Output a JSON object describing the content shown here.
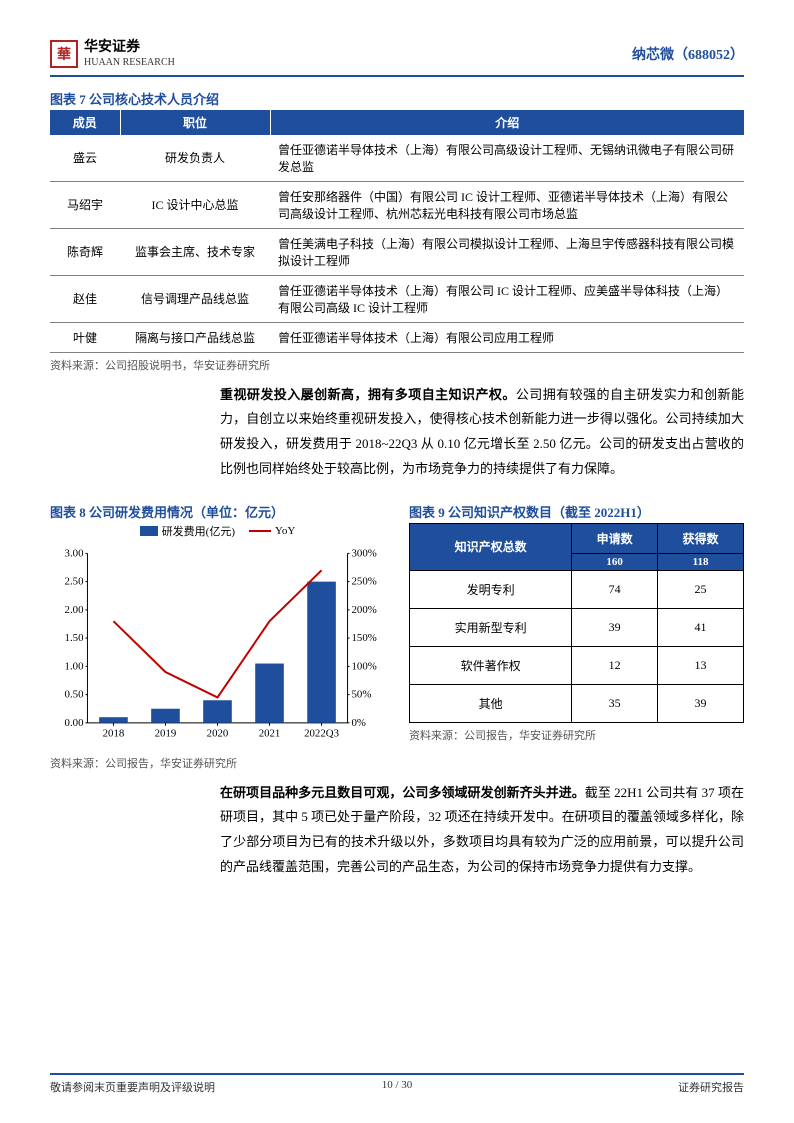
{
  "header": {
    "brand_cn": "华安证券",
    "brand_en": "HUAAN RESEARCH",
    "company": "纳芯微（688052）"
  },
  "table7": {
    "title": "图表 7 公司核心技术人员介绍",
    "headers": [
      "成员",
      "职位",
      "介绍"
    ],
    "rows": [
      {
        "name": "盛云",
        "role": "研发负责人",
        "desc": "曾任亚德诺半导体技术（上海）有限公司高级设计工程师、无锡纳讯微电子有限公司研发总监"
      },
      {
        "name": "马绍宇",
        "role": "IC 设计中心总监",
        "desc": "曾任安那络器件（中国）有限公司 IC 设计工程师、亚德诺半导体技术（上海）有限公司高级设计工程师、杭州芯耘光电科技有限公司市场总监"
      },
      {
        "name": "陈奇辉",
        "role": "监事会主席、技术专家",
        "desc": "曾任美满电子科技（上海）有限公司模拟设计工程师、上海旦宇传感器科技有限公司模拟设计工程师"
      },
      {
        "name": "赵佳",
        "role": "信号调理产品线总监",
        "desc": "曾任亚德诺半导体技术（上海）有限公司 IC 设计工程师、应美盛半导体科技（上海）有限公司高级 IC 设计工程师"
      },
      {
        "name": "叶健",
        "role": "隔离与接口产品线总监",
        "desc": "曾任亚德诺半导体技术（上海）有限公司应用工程师"
      }
    ],
    "source": "资料来源：公司招股说明书，华安证券研究所"
  },
  "para1": {
    "bold": "重视研发投入屡创新高，拥有多项自主知识产权。",
    "rest": "公司拥有较强的自主研发实力和创新能力，自创立以来始终重视研发投入，使得核心技术创新能力进一步得以强化。公司持续加大研发投入，研发费用于 2018~22Q3 从 0.10 亿元增长至 2.50 亿元。公司的研发支出占营收的比例也同样始终处于较高比例，为市场竞争力的持续提供了有力保障。"
  },
  "chart8": {
    "title": "图表 8 公司研发费用情况（单位：亿元）",
    "type": "bar+line",
    "legend_bar": "研发费用(亿元)",
    "legend_line": "YoY",
    "x_labels": [
      "2018",
      "2019",
      "2020",
      "2021",
      "2022Q3"
    ],
    "bar_values": [
      0.1,
      0.25,
      0.4,
      1.05,
      2.5
    ],
    "line_values_pct": [
      180,
      90,
      45,
      180,
      270
    ],
    "y_left_max": 3.0,
    "y_left_ticks": [
      "0.00",
      "0.50",
      "1.00",
      "1.50",
      "2.00",
      "2.50",
      "3.00"
    ],
    "y_right_max": 300,
    "y_right_ticks": [
      "0%",
      "50%",
      "100%",
      "150%",
      "200%",
      "250%",
      "300%"
    ],
    "bar_color": "#1f4e9c",
    "line_color": "#c00000",
    "grid_color": "#000000",
    "bg_color": "#ffffff",
    "source": "资料来源：公司报告，华安证券研究所"
  },
  "table9": {
    "title": "图表 9 公司知识产权数目（截至 2022H1）",
    "header_total": "知识产权总数",
    "header_apply": "申请数",
    "header_obtain": "获得数",
    "total_apply": "160",
    "total_obtain": "118",
    "rows": [
      {
        "label": "发明专利",
        "apply": "74",
        "obtain": "25"
      },
      {
        "label": "实用新型专利",
        "apply": "39",
        "obtain": "41"
      },
      {
        "label": "软件著作权",
        "apply": "12",
        "obtain": "13"
      },
      {
        "label": "其他",
        "apply": "35",
        "obtain": "39"
      }
    ],
    "source": "资料来源：公司报告，华安证券研究所"
  },
  "para2": {
    "bold": "在研项目品种多元且数目可观，公司多领域研发创新齐头并进。",
    "rest": "截至 22H1 公司共有 37 项在研项目，其中 5 项已处于量产阶段，32 项还在持续开发中。在研项目的覆盖领域多样化，除了少部分项目为已有的技术升级以外，多数项目均具有较为广泛的应用前景，可以提升公司的产品线覆盖范围，完善公司的产品生态，为公司的保持市场竞争力提供有力支撑。"
  },
  "footer": {
    "left": "敬请参阅末页重要声明及评级说明",
    "center": "10 / 30",
    "right": "证券研究报告"
  }
}
